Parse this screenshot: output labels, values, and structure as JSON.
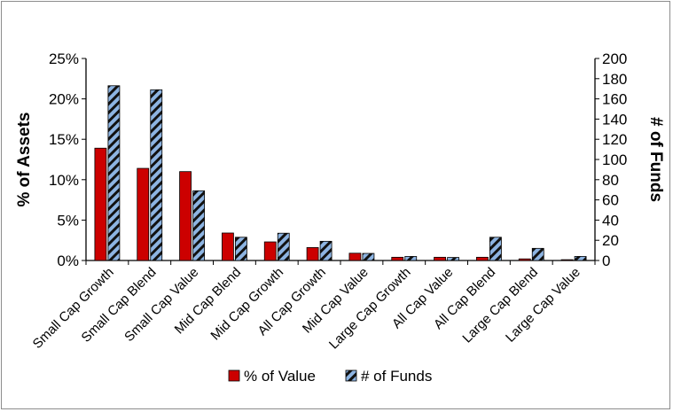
{
  "chart_data": {
    "type": "bar",
    "title": "",
    "categories": [
      "Small Cap Growth",
      "Small Cap Blend",
      "Small Cap Value",
      "Mid Cap Blend",
      "Mid Cap Growth",
      "All Cap Growth",
      "Mid Cap Value",
      "Large Cap Growth",
      "All Cap Value",
      "All Cap Blend",
      "Large Cap Blend",
      "Large Cap Value"
    ],
    "ylabel": "% of Assets",
    "y2label": "# of Funds",
    "ylim": [
      0,
      25
    ],
    "y2lim": [
      0,
      200
    ],
    "yticks": [
      "0%",
      "5%",
      "10%",
      "15%",
      "20%",
      "25%"
    ],
    "y2ticks": [
      "0",
      "20",
      "40",
      "60",
      "80",
      "100",
      "120",
      "140",
      "160",
      "180",
      "200"
    ],
    "series": [
      {
        "name": "% of Value",
        "axis": "left",
        "color": "#cc0000",
        "values": [
          13.9,
          11.4,
          11.0,
          3.4,
          2.3,
          1.6,
          0.9,
          0.4,
          0.4,
          0.4,
          0.2,
          0.1
        ]
      },
      {
        "name": "# of Funds",
        "axis": "right",
        "color": "#8db4e2",
        "values": [
          173,
          169,
          69,
          23,
          27,
          19,
          7,
          4,
          3,
          23,
          12,
          4
        ]
      }
    ],
    "legend_position": "bottom",
    "grid": false
  }
}
